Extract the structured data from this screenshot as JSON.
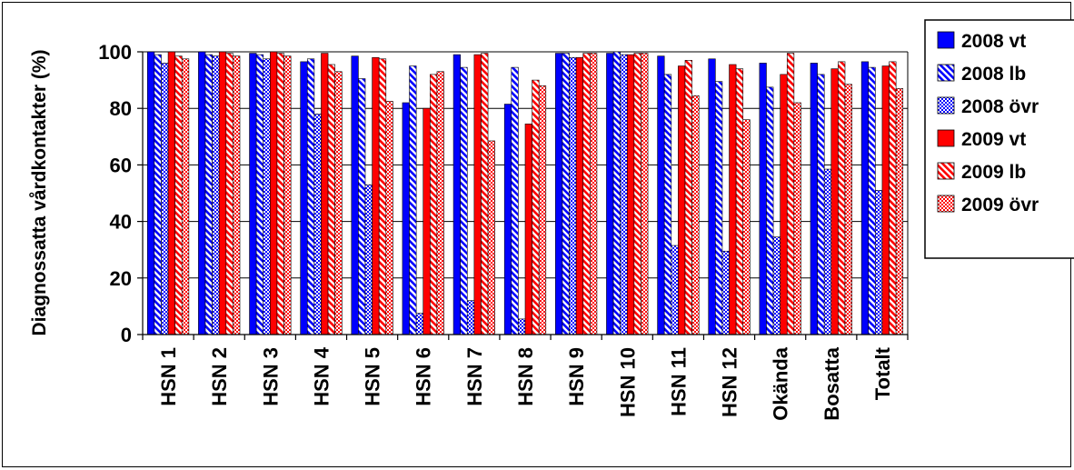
{
  "chart_data": {
    "type": "bar",
    "title": "",
    "xlabel": "",
    "ylabel": "Diagnossatta vårdkontakter (%)",
    "ylim": [
      0,
      100
    ],
    "yticks": [
      0,
      20,
      40,
      60,
      80,
      100
    ],
    "grid": true,
    "legend_position": "right",
    "categories": [
      "HSN 1",
      "HSN 2",
      "HSN 3",
      "HSN 4",
      "HSN 5",
      "HSN 6",
      "HSN 7",
      "HSN 8",
      "HSN 9",
      "HSN 10",
      "HSN 11",
      "HSN 12",
      "Okända",
      "Bosatta",
      "Totalt"
    ],
    "series": [
      {
        "name": "2008 vt",
        "color": "#0000ff",
        "pattern": "solid",
        "values": [
          100,
          100,
          99.5,
          96.5,
          98.5,
          82,
          99,
          81.5,
          99.5,
          99.5,
          98.5,
          97.5,
          96,
          96,
          96.5
        ]
      },
      {
        "name": "2008 lb",
        "color": "#0000ff",
        "pattern": "diagonal",
        "values": [
          99,
          99,
          99,
          97.5,
          90.5,
          95,
          94.5,
          94.5,
          99.5,
          100,
          92,
          89.5,
          87.5,
          92,
          94.5
        ]
      },
      {
        "name": "2008 övr",
        "color": "#0000ff",
        "pattern": "checker",
        "values": [
          96,
          98.5,
          97.5,
          78,
          53,
          7.5,
          12,
          5.5,
          98,
          99,
          31.5,
          29.5,
          34.5,
          58.5,
          51
        ]
      },
      {
        "name": "2009 vt",
        "color": "#ff0000",
        "pattern": "solid",
        "values": [
          100,
          100,
          100,
          99.5,
          98,
          80,
          99,
          74.5,
          98,
          99,
          95,
          95.5,
          92,
          94,
          95
        ]
      },
      {
        "name": "2009 lb",
        "color": "#ff0000",
        "pattern": "diagonal",
        "values": [
          98.5,
          99.5,
          99.5,
          95.5,
          97.5,
          92,
          99.5,
          90,
          99.5,
          99.5,
          97,
          94,
          99.5,
          96.5,
          96.5
        ]
      },
      {
        "name": "2009 övr",
        "color": "#ff0000",
        "pattern": "checker",
        "values": [
          97.5,
          98.5,
          98.5,
          93,
          82.5,
          93,
          68.5,
          88,
          99.5,
          99.5,
          84.5,
          76,
          82,
          88.5,
          87
        ]
      }
    ]
  }
}
